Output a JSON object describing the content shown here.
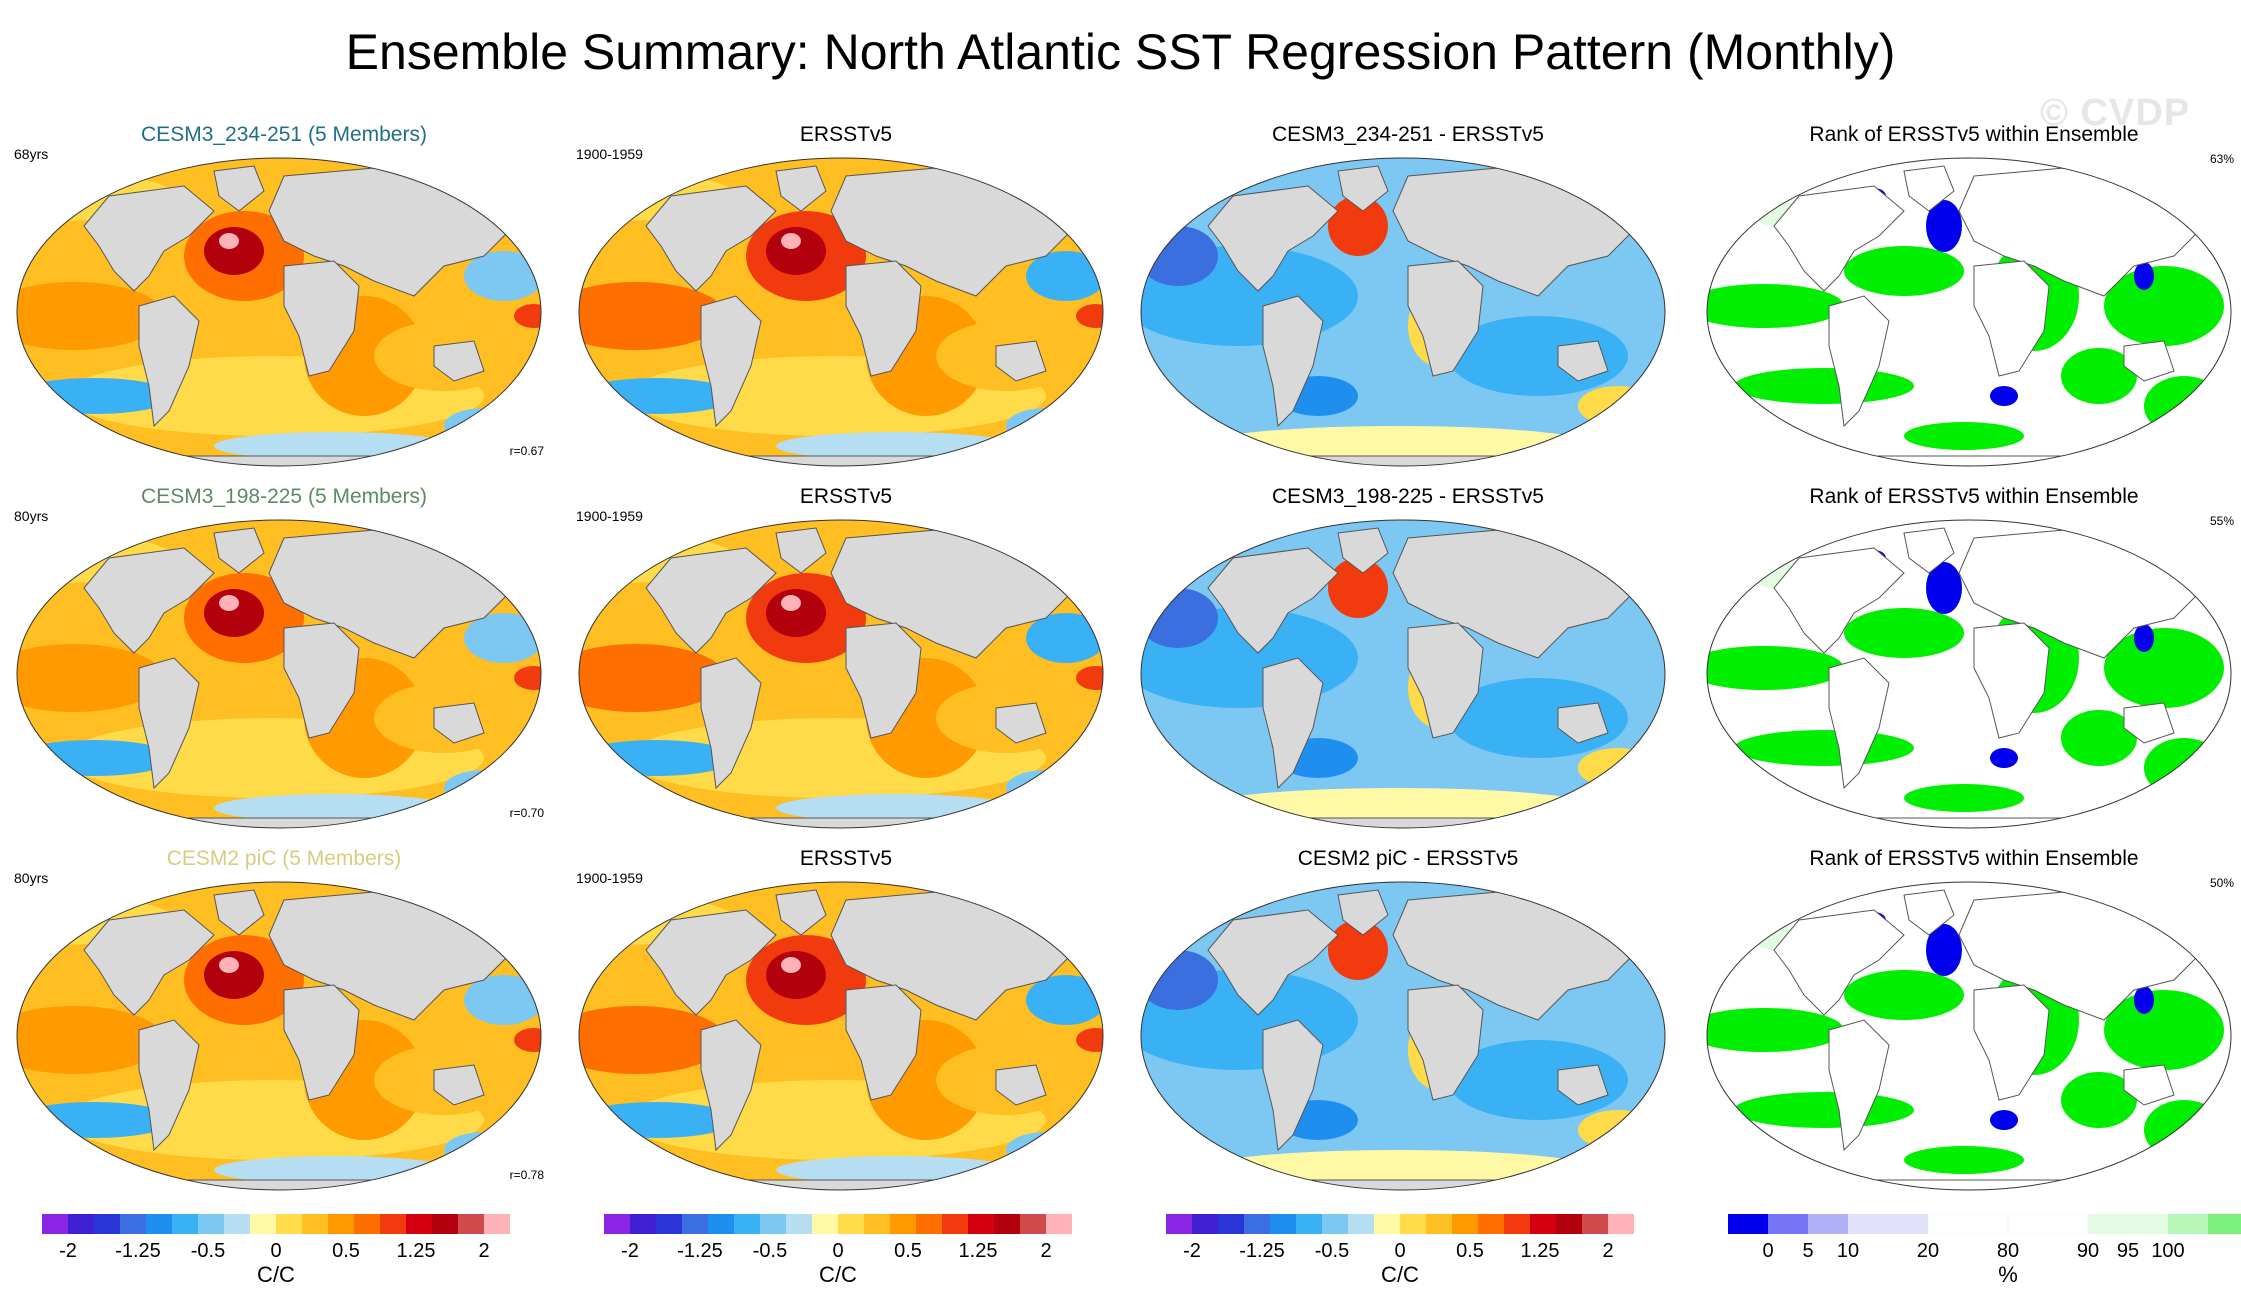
{
  "title": "Ensemble Summary: North Atlantic SST Regression Pattern (Monthly)",
  "watermark": "© CVDP",
  "rows": [
    {
      "model": {
        "title": "CESM3_234-251 (5 Members)",
        "title_color": "#1f6f8b",
        "years": "68yrs",
        "r": "r=0.67"
      },
      "obs": {
        "title": "ERSSTv5",
        "period": "1900-1959"
      },
      "diff": {
        "title": "CESM3_234-251 - ERSSTv5"
      },
      "rank": {
        "title": "Rank of ERSSTv5 within Ensemble",
        "pct": "63%"
      }
    },
    {
      "model": {
        "title": "CESM3_198-225 (5 Members)",
        "title_color": "#5e8a63",
        "years": "80yrs",
        "r": "r=0.70"
      },
      "obs": {
        "title": "ERSSTv5",
        "period": "1900-1959"
      },
      "diff": {
        "title": "CESM3_198-225 - ERSSTv5"
      },
      "rank": {
        "title": "Rank of ERSSTv5 within Ensemble",
        "pct": "55%"
      }
    },
    {
      "model": {
        "title": "CESM2 piC (5 Members)",
        "title_color": "#d8cc80",
        "years": "80yrs",
        "r": "r=0.78"
      },
      "obs": {
        "title": "ERSSTv5",
        "period": "1900-1959"
      },
      "diff": {
        "title": "CESM2 piC - ERSSTv5"
      },
      "rank": {
        "title": "Rank of ERSSTv5 within Ensemble",
        "pct": "50%"
      }
    }
  ],
  "colorbar_sst": {
    "colors": [
      "#8b24e3",
      "#3e1fd1",
      "#2a35d8",
      "#3b6fe0",
      "#1f8fef",
      "#3ab0f5",
      "#7cc8f3",
      "#b6def2",
      "#fff9a6",
      "#ffdb4a",
      "#ffbe21",
      "#ff9a00",
      "#ff6f00",
      "#f23a0f",
      "#d4000f",
      "#b3000d",
      "#cf4a4a",
      "#ffb3b8"
    ],
    "tick_labels": [
      "-2",
      "-1.25",
      "-0.5",
      "0",
      "0.5",
      "1.25",
      "2"
    ],
    "unit": "C/C"
  },
  "colorbar_rank": {
    "colors": [
      "#0000ee",
      "#7474f5",
      "#b0b0f6",
      "#e0e0fb",
      "#ffffff",
      "#ffffff",
      "#e2fbe2",
      "#b6f6b6",
      "#7ef07e",
      "#00ee00"
    ],
    "tick_labels": [
      "0",
      "5",
      "10",
      "20",
      "80",
      "90",
      "95",
      "100"
    ],
    "unit": "%"
  },
  "chart_data": {
    "type": "map-grid",
    "title": "Ensemble Summary: North Atlantic SST Regression Pattern (Monthly)",
    "units": "C/C",
    "contour_levels": [
      -2,
      -1.75,
      -1.5,
      -1.25,
      -1,
      -0.75,
      -0.5,
      -0.25,
      0,
      0.25,
      0.5,
      0.75,
      1,
      1.25,
      1.5,
      1.75,
      2
    ],
    "rank_levels_percent": [
      0,
      5,
      10,
      20,
      80,
      90,
      95,
      100
    ],
    "pattern_correlations": [
      0.67,
      0.7,
      0.78
    ],
    "rank_percentages": [
      63,
      55,
      50
    ]
  }
}
